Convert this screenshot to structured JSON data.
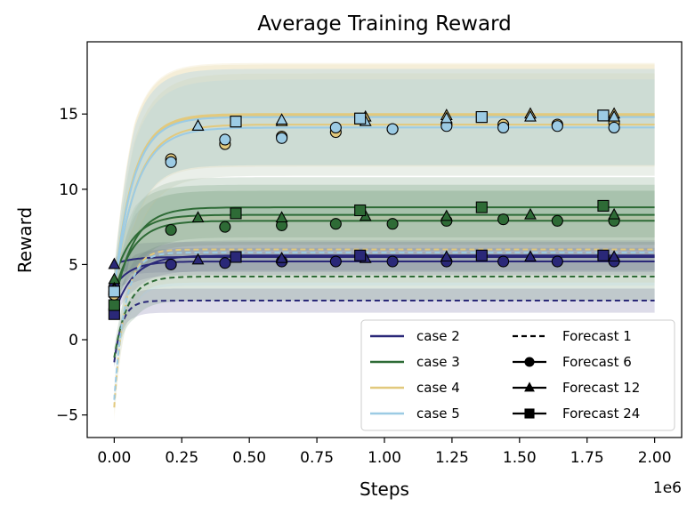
{
  "chart_data": {
    "type": "line",
    "title": "Average Training Reward",
    "xlabel": "Steps",
    "ylabel": "Reward",
    "x_offset_label": "1e6",
    "xlim": [
      -0.1,
      2.1
    ],
    "ylim": [
      -6.5,
      19.8
    ],
    "x_ticks": [
      {
        "value": 0.0,
        "label": "0.00"
      },
      {
        "value": 0.25,
        "label": "0.25"
      },
      {
        "value": 0.5,
        "label": "0.50"
      },
      {
        "value": 0.75,
        "label": "0.75"
      },
      {
        "value": 1.0,
        "label": "1.00"
      },
      {
        "value": 1.25,
        "label": "1.25"
      },
      {
        "value": 1.5,
        "label": "1.50"
      },
      {
        "value": 1.75,
        "label": "1.75"
      },
      {
        "value": 2.0,
        "label": "2.00"
      }
    ],
    "y_ticks": [
      {
        "value": -5,
        "label": "−5"
      },
      {
        "value": 0,
        "label": "0"
      },
      {
        "value": 5,
        "label": "5"
      },
      {
        "value": 10,
        "label": "10"
      },
      {
        "value": 15,
        "label": "15"
      }
    ],
    "grid": false,
    "legend_position": "lower-right",
    "cases": [
      {
        "name": "case 2",
        "color": "#2a2878"
      },
      {
        "name": "case 3",
        "color": "#2e6b36"
      },
      {
        "name": "case 4",
        "color": "#e2c97d"
      },
      {
        "name": "case 5",
        "color": "#9ccbe4"
      }
    ],
    "forecasts": [
      {
        "name": "Forecast 1",
        "line": "dashed",
        "marker": "none"
      },
      {
        "name": "Forecast 6",
        "line": "solid",
        "marker": "circle"
      },
      {
        "name": "Forecast 12",
        "line": "solid",
        "marker": "triangle"
      },
      {
        "name": "Forecast 24",
        "line": "solid",
        "marker": "square"
      }
    ],
    "series": [
      {
        "case": "case 2",
        "forecast": "Forecast 1",
        "start": -1.5,
        "plateau": 2.6,
        "tau": 0.03,
        "band": 0.8,
        "markers": []
      },
      {
        "case": "case 2",
        "forecast": "Forecast 6",
        "start": 3.5,
        "plateau": 5.2,
        "tau": 0.06,
        "band": 0.9,
        "markers": [
          [
            0.0,
            3.5
          ],
          [
            0.21,
            5.0
          ],
          [
            0.41,
            5.1
          ],
          [
            0.62,
            5.2
          ],
          [
            0.82,
            5.2
          ],
          [
            1.03,
            5.2
          ],
          [
            1.23,
            5.2
          ],
          [
            1.44,
            5.2
          ],
          [
            1.64,
            5.2
          ],
          [
            1.85,
            5.2
          ]
        ]
      },
      {
        "case": "case 2",
        "forecast": "Forecast 12",
        "start": 5.0,
        "plateau": 5.5,
        "tau": 0.06,
        "band": 1.0,
        "markers": [
          [
            0.0,
            5.0
          ],
          [
            0.31,
            5.3
          ],
          [
            0.62,
            5.4
          ],
          [
            0.93,
            5.4
          ],
          [
            1.23,
            5.5
          ],
          [
            1.54,
            5.5
          ],
          [
            1.85,
            5.5
          ]
        ]
      },
      {
        "case": "case 2",
        "forecast": "Forecast 24",
        "start": 1.7,
        "plateau": 5.6,
        "tau": 0.07,
        "band": 1.0,
        "markers": [
          [
            0.0,
            1.7
          ],
          [
            0.45,
            5.5
          ],
          [
            0.91,
            5.6
          ],
          [
            1.36,
            5.6
          ],
          [
            1.81,
            5.6
          ]
        ]
      },
      {
        "case": "case 3",
        "forecast": "Forecast 1",
        "start": -1.2,
        "plateau": 4.2,
        "tau": 0.05,
        "band": 1.6,
        "markers": []
      },
      {
        "case": "case 3",
        "forecast": "Forecast 6",
        "start": 3.0,
        "plateau": 7.9,
        "tau": 0.07,
        "band": 2.0,
        "markers": [
          [
            0.0,
            3.0
          ],
          [
            0.21,
            7.3
          ],
          [
            0.41,
            7.5
          ],
          [
            0.62,
            7.6
          ],
          [
            0.82,
            7.7
          ],
          [
            1.03,
            7.7
          ],
          [
            1.23,
            7.9
          ],
          [
            1.44,
            8.0
          ],
          [
            1.64,
            7.9
          ],
          [
            1.85,
            7.9
          ]
        ]
      },
      {
        "case": "case 3",
        "forecast": "Forecast 12",
        "start": 4.0,
        "plateau": 8.3,
        "tau": 0.07,
        "band": 2.0,
        "markers": [
          [
            0.0,
            4.0
          ],
          [
            0.31,
            8.1
          ],
          [
            0.62,
            8.1
          ],
          [
            0.93,
            8.2
          ],
          [
            1.23,
            8.2
          ],
          [
            1.54,
            8.3
          ],
          [
            1.85,
            8.3
          ]
        ]
      },
      {
        "case": "case 3",
        "forecast": "Forecast 24",
        "start": 2.3,
        "plateau": 8.8,
        "tau": 0.07,
        "band": 2.0,
        "markers": [
          [
            0.0,
            2.3
          ],
          [
            0.45,
            8.4
          ],
          [
            0.91,
            8.6
          ],
          [
            1.36,
            8.8
          ],
          [
            1.81,
            8.9
          ]
        ]
      },
      {
        "case": "case 4",
        "forecast": "Forecast 1",
        "start": -4.5,
        "plateau": 6.0,
        "tau": 0.04,
        "band": 2.2,
        "markers": []
      },
      {
        "case": "case 4",
        "forecast": "Forecast 6",
        "start": 3.0,
        "plateau": 14.3,
        "tau": 0.08,
        "band": 3.4,
        "markers": [
          [
            0.0,
            3.0
          ],
          [
            0.21,
            12.0
          ],
          [
            0.41,
            13.0
          ],
          [
            0.62,
            13.5
          ],
          [
            0.82,
            13.8
          ],
          [
            1.03,
            14.0
          ],
          [
            1.23,
            14.3
          ],
          [
            1.44,
            14.3
          ],
          [
            1.64,
            14.3
          ],
          [
            1.85,
            14.4
          ]
        ]
      },
      {
        "case": "case 4",
        "forecast": "Forecast 12",
        "start": 3.4,
        "plateau": 15.0,
        "tau": 0.07,
        "band": 3.4,
        "markers": [
          [
            0.0,
            3.4
          ],
          [
            0.31,
            14.2
          ],
          [
            0.62,
            14.5
          ],
          [
            0.93,
            14.8
          ],
          [
            1.23,
            14.9
          ],
          [
            1.54,
            15.0
          ],
          [
            1.85,
            15.0
          ]
        ]
      },
      {
        "case": "case 4",
        "forecast": "Forecast 24",
        "start": 3.2,
        "plateau": 14.9,
        "tau": 0.07,
        "band": 3.4,
        "markers": [
          [
            0.0,
            3.2
          ],
          [
            0.45,
            14.5
          ],
          [
            0.91,
            14.7
          ],
          [
            1.36,
            14.8
          ],
          [
            1.81,
            14.9
          ]
        ]
      },
      {
        "case": "case 5",
        "forecast": "Forecast 1",
        "start": -4.0,
        "plateau": 5.8,
        "tau": 0.04,
        "band": 2.2,
        "markers": []
      },
      {
        "case": "case 5",
        "forecast": "Forecast 6",
        "start": 3.2,
        "plateau": 14.1,
        "tau": 0.08,
        "band": 3.2,
        "markers": [
          [
            0.0,
            3.2
          ],
          [
            0.21,
            11.8
          ],
          [
            0.41,
            13.3
          ],
          [
            0.62,
            13.4
          ],
          [
            0.82,
            14.1
          ],
          [
            1.03,
            14.0
          ],
          [
            1.23,
            14.2
          ],
          [
            1.44,
            14.1
          ],
          [
            1.64,
            14.2
          ],
          [
            1.85,
            14.1
          ]
        ]
      },
      {
        "case": "case 5",
        "forecast": "Forecast 12",
        "start": 3.3,
        "plateau": 14.8,
        "tau": 0.07,
        "band": 3.2,
        "markers": [
          [
            0.0,
            3.3
          ],
          [
            0.31,
            14.2
          ],
          [
            0.62,
            14.6
          ],
          [
            0.93,
            14.5
          ],
          [
            1.23,
            14.7
          ],
          [
            1.54,
            14.8
          ],
          [
            1.85,
            14.8
          ]
        ]
      },
      {
        "case": "case 5",
        "forecast": "Forecast 24",
        "start": 3.2,
        "plateau": 14.8,
        "tau": 0.07,
        "band": 3.2,
        "markers": [
          [
            0.0,
            3.2
          ],
          [
            0.45,
            14.5
          ],
          [
            0.91,
            14.7
          ],
          [
            1.36,
            14.8
          ],
          [
            1.81,
            14.9
          ]
        ]
      }
    ]
  }
}
